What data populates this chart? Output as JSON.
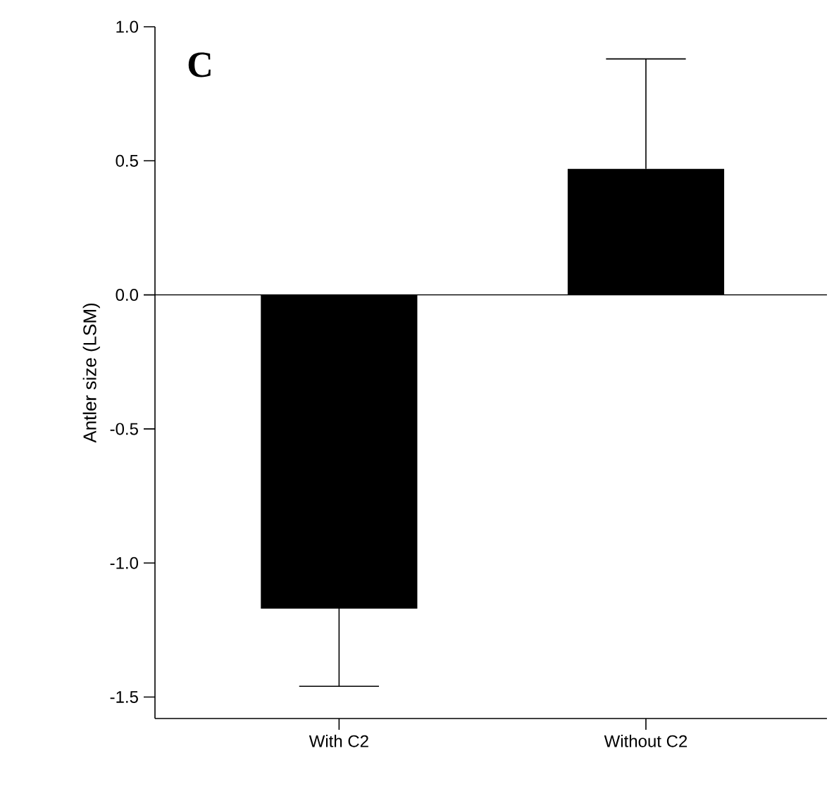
{
  "chart_data": {
    "type": "bar",
    "categories": [
      "With C2",
      "Without C2"
    ],
    "values": [
      -1.17,
      0.47
    ],
    "errors": [
      [
        -1.46,
        -1.17
      ],
      [
        0.47,
        0.88
      ]
    ],
    "color": "#000000",
    "ylabel": "Antler size (LSM)",
    "ylim": [
      -1.58,
      1.0
    ],
    "yticks": [
      -1.5,
      {
        "value": -1.0,
        "label": "-1.0"
      },
      -0.5,
      {
        "value": 0.0,
        "label": "0.0"
      },
      0.5,
      {
        "value": 1.0,
        "label": "1.0"
      }
    ],
    "ref_lines": [
      {
        "axis": "y",
        "value": 0
      }
    ],
    "annotations": [
      "C"
    ],
    "grid": false
  }
}
